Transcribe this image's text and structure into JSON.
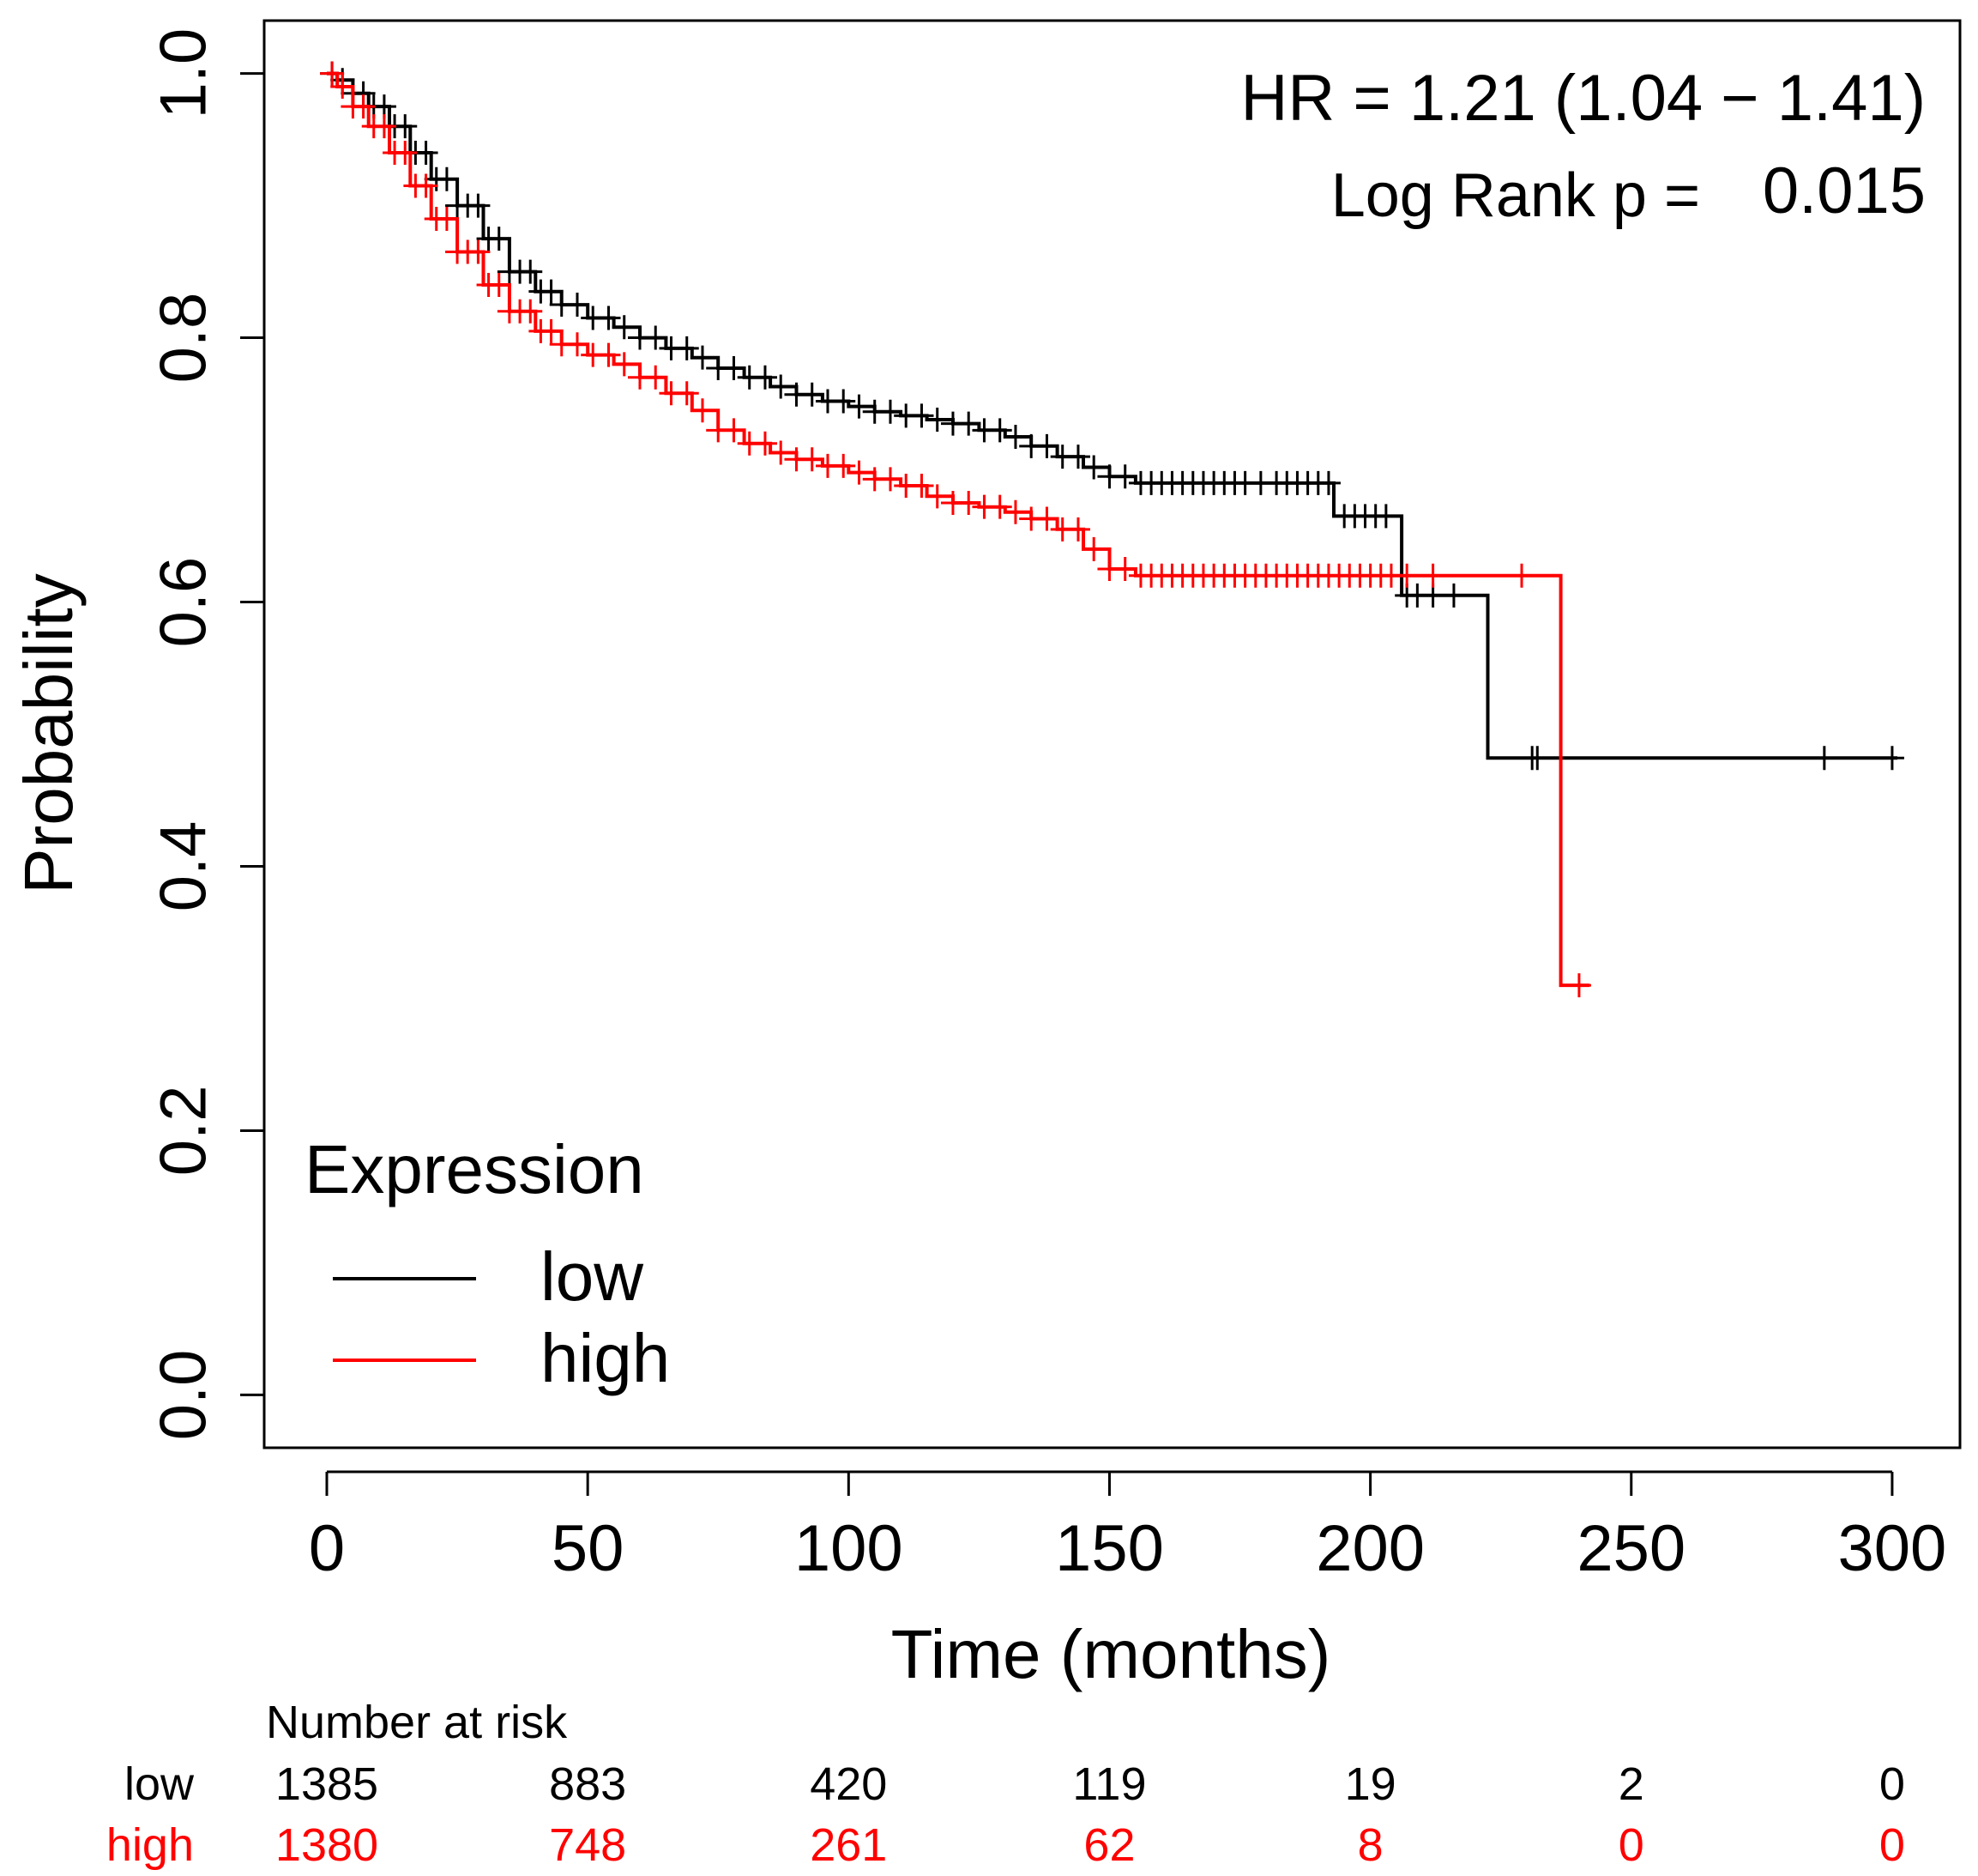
{
  "chart_data": {
    "type": "line",
    "subtype": "kaplan-meier",
    "xlabel": "Time (months)",
    "ylabel": "Probability",
    "xlim": [
      -12,
      313
    ],
    "ylim": [
      -0.04,
      1.04
    ],
    "xticks": [
      0,
      50,
      100,
      150,
      200,
      250,
      300
    ],
    "yticks": [
      0.0,
      0.2,
      0.4,
      0.6,
      0.8,
      1.0
    ],
    "xtick_labels": [
      "0",
      "50",
      "100",
      "150",
      "200",
      "250",
      "300"
    ],
    "ytick_labels": [
      "0.0",
      "0.2",
      "0.4",
      "0.6",
      "0.8",
      "1.0"
    ],
    "grid": false,
    "annotations": {
      "hr": "HR = 1.21 (1.04 − 1.41)",
      "logrank_label": "Log Rank p =",
      "logrank_value": "0.015"
    },
    "legend": {
      "title": "Expression",
      "placement": "bottom-left",
      "entries": [
        "low",
        "high"
      ]
    },
    "series": [
      {
        "name": "low",
        "color": "#000000",
        "x": [
          0,
          2,
          5,
          8,
          12,
          16,
          20,
          25,
          30,
          35,
          40,
          45,
          50,
          55,
          60,
          65,
          70,
          75,
          80,
          85,
          90,
          95,
          100,
          105,
          110,
          115,
          120,
          125,
          130,
          135,
          140,
          145,
          150,
          155,
          160,
          170,
          180,
          190,
          193,
          205,
          206,
          215,
          222.5,
          232,
          290,
          301
        ],
        "y": [
          1.0,
          0.995,
          0.985,
          0.975,
          0.96,
          0.94,
          0.92,
          0.9,
          0.875,
          0.85,
          0.835,
          0.825,
          0.815,
          0.808,
          0.8,
          0.792,
          0.785,
          0.777,
          0.77,
          0.763,
          0.757,
          0.752,
          0.748,
          0.744,
          0.741,
          0.738,
          0.735,
          0.73,
          0.725,
          0.718,
          0.71,
          0.702,
          0.695,
          0.69,
          0.69,
          0.69,
          0.69,
          0.69,
          0.665,
          0.665,
          0.605,
          0.605,
          0.482,
          0.482,
          0.482,
          0.482
        ],
        "censor_x": [
          1,
          3,
          5,
          7,
          9,
          11,
          13,
          15,
          17,
          19,
          21,
          23,
          25,
          27,
          29,
          31,
          33,
          35,
          37,
          39,
          41,
          43,
          45,
          48,
          51,
          54,
          57,
          60,
          63,
          66,
          69,
          72,
          75,
          78,
          81,
          84,
          87,
          90,
          93,
          96,
          99,
          102,
          105,
          108,
          111,
          114,
          117,
          120,
          123,
          126,
          129,
          132,
          135,
          138,
          141,
          144,
          147,
          150,
          153,
          156,
          158,
          160,
          162,
          164,
          166,
          168,
          170,
          172,
          174,
          176,
          179,
          182,
          184,
          186,
          188,
          190,
          192,
          195,
          197,
          199,
          201,
          203,
          207,
          209,
          212,
          216,
          231,
          232,
          287,
          300
        ]
      },
      {
        "name": "high",
        "color": "#ff0000",
        "x": [
          0,
          2,
          5,
          8,
          12,
          16,
          20,
          25,
          30,
          35,
          40,
          45,
          50,
          55,
          60,
          65,
          70,
          75,
          80,
          85,
          90,
          95,
          100,
          105,
          110,
          115,
          120,
          125,
          130,
          135,
          140,
          145,
          150,
          155,
          160,
          200,
          230,
          236.5,
          242
        ],
        "y": [
          1.0,
          0.99,
          0.975,
          0.96,
          0.94,
          0.915,
          0.89,
          0.865,
          0.84,
          0.82,
          0.805,
          0.795,
          0.787,
          0.78,
          0.77,
          0.758,
          0.745,
          0.73,
          0.72,
          0.713,
          0.708,
          0.703,
          0.698,
          0.693,
          0.688,
          0.68,
          0.675,
          0.672,
          0.668,
          0.663,
          0.655,
          0.64,
          0.625,
          0.62,
          0.62,
          0.62,
          0.62,
          0.31,
          0.31
        ],
        "censor_x": [
          1,
          3,
          5,
          7,
          9,
          11,
          13,
          15,
          17,
          19,
          21,
          23,
          25,
          27,
          29,
          31,
          33,
          35,
          37,
          39,
          41,
          43,
          45,
          48,
          51,
          54,
          57,
          60,
          63,
          66,
          69,
          72,
          75,
          78,
          81,
          84,
          87,
          90,
          93,
          96,
          99,
          102,
          105,
          108,
          111,
          114,
          117,
          120,
          123,
          126,
          129,
          132,
          135,
          138,
          141,
          144,
          147,
          150,
          153,
          156,
          158,
          160,
          162,
          164,
          166,
          168,
          170,
          172,
          174,
          176,
          178,
          180,
          182,
          184,
          186,
          188,
          190,
          192,
          194,
          196,
          198,
          200,
          202,
          204,
          207,
          212,
          229,
          240
        ]
      }
    ],
    "risk_table": {
      "title": "Number at risk",
      "times": [
        0,
        50,
        100,
        150,
        200,
        250,
        300
      ],
      "rows": [
        {
          "label": "low",
          "color": "#000000",
          "values": [
            "1385",
            "883",
            "420",
            "119",
            "19",
            "2",
            "0"
          ]
        },
        {
          "label": "high",
          "color": "#ff0000",
          "values": [
            "1380",
            "748",
            "261",
            "62",
            "8",
            "0",
            "0"
          ]
        }
      ]
    }
  }
}
